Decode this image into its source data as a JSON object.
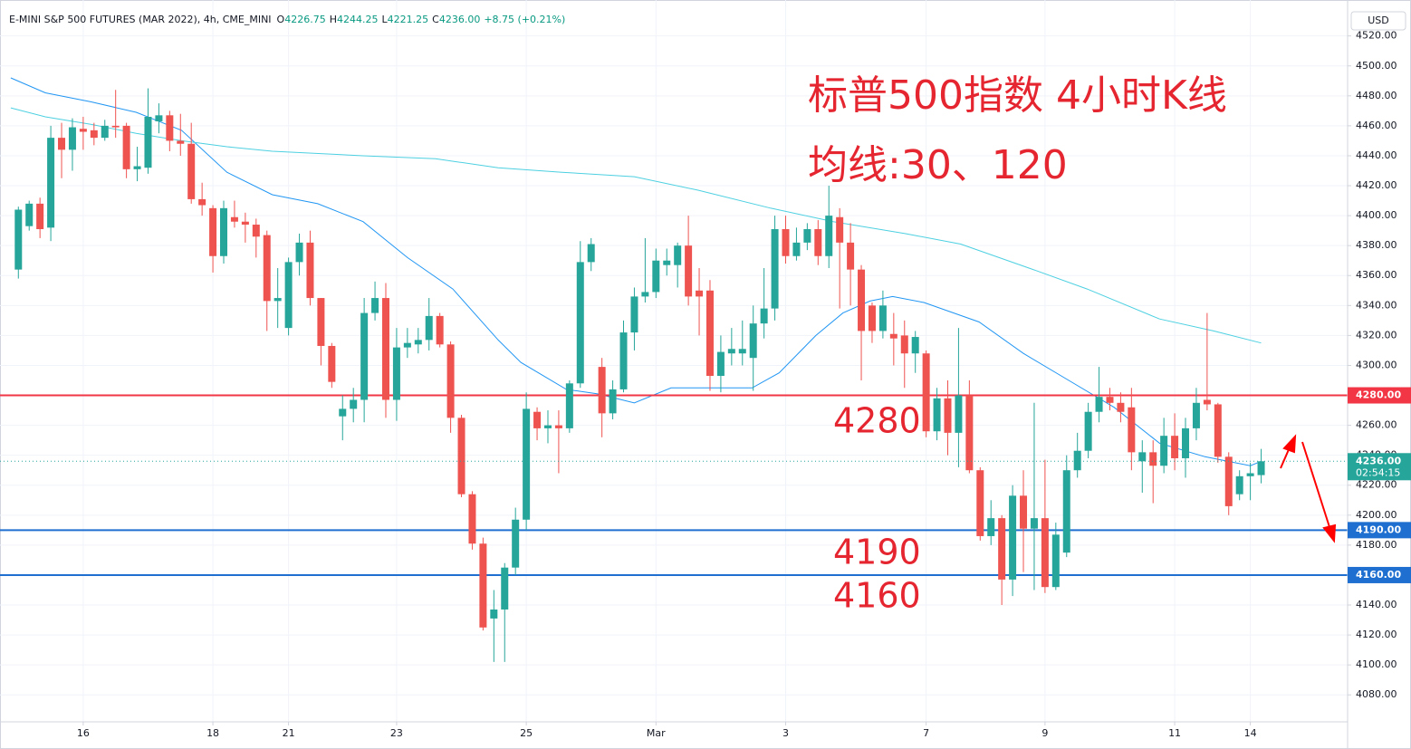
{
  "chart_data": {
    "type": "candlestick",
    "symbol": "E-MINI S&P 500 FUTURES (MAR 2022), 4h, CME_MINI",
    "ohlc_legend": [
      {
        "key": "O",
        "value": "4226.75"
      },
      {
        "key": "H",
        "value": "4244.25"
      },
      {
        "key": "L",
        "value": "4221.25"
      },
      {
        "key": "C",
        "value": "4236.00"
      }
    ],
    "change": "+8.75 (+0.21%)",
    "currency": "USD",
    "annotations": [
      "标普500指数 4小时K线",
      "均线:30、120",
      "4280",
      "4190",
      "4160"
    ],
    "up_color": "#26a69a",
    "down_color": "#ef5350",
    "grid": true,
    "xlim": [
      -1.7,
      123
    ],
    "xticks": [
      {
        "value": 6,
        "label": "16"
      },
      {
        "value": 18,
        "label": "18"
      },
      {
        "value": 25,
        "label": "21"
      },
      {
        "value": 35,
        "label": "23"
      },
      {
        "value": 47,
        "label": "25"
      },
      {
        "value": 59,
        "label": "Mar"
      },
      {
        "value": 71,
        "label": "3"
      },
      {
        "value": 84,
        "label": "7"
      },
      {
        "value": 95,
        "label": "9"
      },
      {
        "value": 107,
        "label": "11"
      },
      {
        "value": 114,
        "label": "14"
      }
    ],
    "ylim": [
      4062,
      4544
    ],
    "yticks": [
      {
        "value": 4080,
        "label": "4080.00"
      },
      {
        "value": 4100,
        "label": "4100.00"
      },
      {
        "value": 4120,
        "label": "4120.00"
      },
      {
        "value": 4140,
        "label": "4140.00"
      },
      {
        "value": 4160,
        "label": "4160.00"
      },
      {
        "value": 4180,
        "label": "4180.00"
      },
      {
        "value": 4200,
        "label": "4200.00"
      },
      {
        "value": 4220,
        "label": "4220.00"
      },
      {
        "value": 4240,
        "label": "4240.00"
      },
      {
        "value": 4260,
        "label": "4260.00"
      },
      {
        "value": 4280,
        "label": "4280.00"
      },
      {
        "value": 4300,
        "label": "4300.00"
      },
      {
        "value": 4320,
        "label": "4320.00"
      },
      {
        "value": 4340,
        "label": "4340.00"
      },
      {
        "value": 4360,
        "label": "4360.00"
      },
      {
        "value": 4380,
        "label": "4380.00"
      },
      {
        "value": 4400,
        "label": "4400.00"
      },
      {
        "value": 4420,
        "label": "4420.00"
      },
      {
        "value": 4440,
        "label": "4440.00"
      },
      {
        "value": 4460,
        "label": "4460.00"
      },
      {
        "value": 4480,
        "label": "4480.00"
      },
      {
        "value": 4500,
        "label": "4500.00"
      },
      {
        "value": 4520,
        "label": "4520.00"
      }
    ],
    "candles": [
      [
        4364,
        4406,
        4358,
        4404
      ],
      [
        4393,
        4410,
        4390,
        4408
      ],
      [
        4408,
        4412,
        4385,
        4391
      ],
      [
        4392,
        4460,
        4383,
        4452
      ],
      [
        4452,
        4462,
        4425,
        4444
      ],
      [
        4444,
        4465,
        4430,
        4459
      ],
      [
        4458,
        4466,
        4444,
        4456
      ],
      [
        4457,
        4462,
        4447,
        4452
      ],
      [
        4452,
        4464,
        4450,
        4460
      ],
      [
        4460,
        4484,
        4452,
        4459
      ],
      [
        4460,
        4462,
        4425,
        4431
      ],
      [
        4431,
        4446,
        4423,
        4433
      ],
      [
        4432,
        4485,
        4428,
        4466
      ],
      [
        4463,
        4475,
        4455,
        4467
      ],
      [
        4467,
        4470,
        4443,
        4450
      ],
      [
        4450,
        4468,
        4440,
        4448
      ],
      [
        4448,
        4462,
        4408,
        4411
      ],
      [
        4411,
        4422,
        4400,
        4407
      ],
      [
        4405,
        4407,
        4362,
        4373
      ],
      [
        4373,
        4410,
        4368,
        4405
      ],
      [
        4399,
        4410,
        4392,
        4396
      ],
      [
        4396,
        4402,
        4382,
        4394
      ],
      [
        4394,
        4398,
        4372,
        4386
      ],
      [
        4387,
        4390,
        4323,
        4343
      ],
      [
        4343,
        4365,
        4325,
        4345
      ],
      [
        4325,
        4372,
        4320,
        4369
      ],
      [
        4369,
        4388,
        4360,
        4382
      ],
      [
        4382,
        4390,
        4340,
        4345
      ],
      [
        4345,
        4345,
        4300,
        4313
      ],
      [
        4313,
        4315,
        4285,
        4289
      ],
      [
        4266,
        4280,
        4250,
        4271
      ],
      [
        4271,
        4285,
        4262,
        4277
      ],
      [
        4277,
        4345,
        4262,
        4335
      ],
      [
        4335,
        4356,
        4330,
        4345
      ],
      [
        4345,
        4355,
        4265,
        4277
      ],
      [
        4277,
        4325,
        4263,
        4312
      ],
      [
        4312,
        4325,
        4305,
        4315
      ],
      [
        4314,
        4325,
        4308,
        4317
      ],
      [
        4317,
        4345,
        4310,
        4333
      ],
      [
        4333,
        4335,
        4312,
        4314
      ],
      [
        4314,
        4316,
        4255,
        4265
      ],
      [
        4265,
        4267,
        4212,
        4214
      ],
      [
        4214,
        4216,
        4177,
        4181
      ],
      [
        4181,
        4185,
        4123,
        4125
      ],
      [
        4131,
        4150,
        4102,
        4137
      ],
      [
        4137,
        4168,
        4102,
        4165
      ],
      [
        4165,
        4205,
        4160,
        4197
      ],
      [
        4197,
        4282,
        4190,
        4271
      ],
      [
        4269,
        4272,
        4250,
        4258
      ],
      [
        4258,
        4270,
        4248,
        4260
      ],
      [
        4260,
        4270,
        4228,
        4258
      ],
      [
        4258,
        4290,
        4255,
        4288
      ],
      [
        4288,
        4383,
        4285,
        4369
      ],
      [
        4369,
        4385,
        4363,
        4381
      ],
      [
        4299,
        4305,
        4252,
        4268
      ],
      [
        4268,
        4290,
        4264,
        4284
      ],
      [
        4284,
        4330,
        4282,
        4322
      ],
      [
        4322,
        4352,
        4310,
        4346
      ],
      [
        4346,
        4385,
        4342,
        4349
      ],
      [
        4349,
        4378,
        4345,
        4370
      ],
      [
        4367,
        4378,
        4360,
        4370
      ],
      [
        4367,
        4382,
        4352,
        4380
      ],
      [
        4380,
        4400,
        4340,
        4346
      ],
      [
        4350,
        4365,
        4320,
        4346
      ],
      [
        4350,
        4357,
        4283,
        4293
      ],
      [
        4293,
        4320,
        4282,
        4309
      ],
      [
        4308,
        4325,
        4300,
        4311
      ],
      [
        4308,
        4330,
        4300,
        4311
      ],
      [
        4305,
        4340,
        4283,
        4328
      ],
      [
        4328,
        4365,
        4318,
        4338
      ],
      [
        4338,
        4400,
        4330,
        4391
      ],
      [
        4391,
        4400,
        4368,
        4373
      ],
      [
        4373,
        4392,
        4370,
        4382
      ],
      [
        4382,
        4395,
        4377,
        4391
      ],
      [
        4391,
        4397,
        4367,
        4373
      ],
      [
        4373,
        4420,
        4365,
        4400
      ],
      [
        4399,
        4405,
        4338,
        4382
      ],
      [
        4382,
        4395,
        4340,
        4364
      ],
      [
        4364,
        4367,
        4290,
        4323
      ],
      [
        4340,
        4342,
        4315,
        4323
      ],
      [
        4323,
        4350,
        4318,
        4340
      ],
      [
        4321,
        4335,
        4300,
        4318
      ],
      [
        4320,
        4330,
        4285,
        4308
      ],
      [
        4308,
        4323,
        4295,
        4319
      ],
      [
        4308,
        4310,
        4252,
        4256
      ],
      [
        4256,
        4285,
        4250,
        4278
      ],
      [
        4278,
        4290,
        4240,
        4255
      ],
      [
        4255,
        4325,
        4232,
        4280
      ],
      [
        4280,
        4290,
        4228,
        4230
      ],
      [
        4230,
        4232,
        4183,
        4186
      ],
      [
        4186,
        4210,
        4180,
        4198
      ],
      [
        4198,
        4200,
        4140,
        4157
      ],
      [
        4157,
        4220,
        4146,
        4213
      ],
      [
        4213,
        4230,
        4162,
        4191
      ],
      [
        4191,
        4275,
        4150,
        4198
      ],
      [
        4198,
        4237,
        4148,
        4152
      ],
      [
        4152,
        4195,
        4150,
        4187
      ],
      [
        4175,
        4240,
        4172,
        4230
      ],
      [
        4230,
        4255,
        4225,
        4243
      ],
      [
        4243,
        4275,
        4238,
        4269
      ],
      [
        4269,
        4299,
        4262,
        4279
      ],
      [
        4279,
        4285,
        4270,
        4275
      ],
      [
        4275,
        4282,
        4262,
        4269
      ],
      [
        4272,
        4285,
        4230,
        4242
      ],
      [
        4236,
        4250,
        4215,
        4242
      ],
      [
        4242,
        4250,
        4208,
        4233
      ],
      [
        4233,
        4265,
        4228,
        4253
      ],
      [
        4253,
        4268,
        4230,
        4238
      ],
      [
        4238,
        4265,
        4225,
        4258
      ],
      [
        4258,
        4285,
        4250,
        4275
      ],
      [
        4277,
        4335,
        4270,
        4274
      ],
      [
        4274,
        4275,
        4235,
        4239
      ],
      [
        4239,
        4242,
        4200,
        4206
      ],
      [
        4214,
        4230,
        4210,
        4226
      ],
      [
        4226,
        4235,
        4210,
        4228
      ],
      [
        4226.75,
        4244.25,
        4221.25,
        4236
      ]
    ],
    "moving_averages": [
      {
        "color": "#2196f3",
        "x": [
          -0.7,
          2.5,
          6.7,
          10.9,
          15.1,
          19.3,
          23.5,
          27.7,
          31.9,
          36.0,
          40.2,
          44.4,
          46.5,
          50.7,
          53.6,
          57.0,
          60.4,
          65.4,
          67.9,
          70.4,
          73.8,
          76.3,
          78.8,
          80.9,
          83.8,
          88.9,
          93.0,
          97.2,
          101.4,
          105.6,
          109.8,
          114.0,
          115
        ],
        "values": [
          4492,
          4482,
          4476,
          4469,
          4457,
          4429,
          4414,
          4408,
          4396,
          4372,
          4351,
          4317,
          4302,
          4284,
          4281,
          4275,
          4285,
          4285,
          4285,
          4295,
          4320,
          4335,
          4343,
          4346,
          4342,
          4329,
          4308,
          4290,
          4272,
          4248,
          4239,
          4233,
          4236
        ]
      },
      {
        "color": "#4dd0e1",
        "x": [
          -0.7,
          2.5,
          6.7,
          10.9,
          15.1,
          19.3,
          23.5,
          31.9,
          38.6,
          44.4,
          50.3,
          57.0,
          62.9,
          69.6,
          75.4,
          82.1,
          87.2,
          93.9,
          98.9,
          105.6,
          110.6,
          115
        ],
        "values": [
          4472,
          4466,
          4461,
          4455,
          4450,
          4446,
          4443,
          4440,
          4438,
          4432,
          4429,
          4426,
          4417,
          4405,
          4396,
          4388,
          4381,
          4364,
          4351,
          4331,
          4323,
          4315
        ]
      }
    ],
    "levels": [
      {
        "value": 4280,
        "label": "4280.00",
        "color": "#f23645"
      },
      {
        "value": 4190,
        "label": "4190.00",
        "color": "#1e6fd0"
      },
      {
        "value": 4160,
        "label": "4160.00",
        "color": "#1e6fd0"
      }
    ],
    "last": {
      "value": 4236,
      "label": "4236.00",
      "countdown": "02:54:15",
      "color": "#26a69a"
    }
  }
}
